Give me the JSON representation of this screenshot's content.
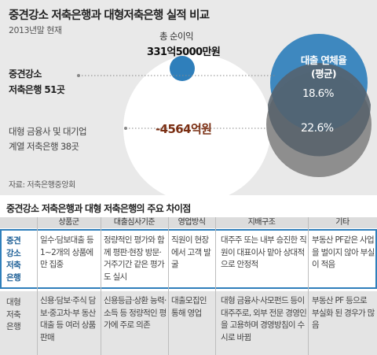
{
  "title": "중견강소 저축은행과 대형저축은행 실적 비교",
  "subtitle": "2013년말 현재",
  "labels": {
    "mid_group_line1": "중견강소",
    "mid_group_line2": "저축은행 51곳",
    "big_group_line1": "대형 금융사 및 대기업",
    "big_group_line2": "계열 저축은행 38곳",
    "profit_name": "총 순이익",
    "profit_value": "331억5000만원",
    "loss_value": "-4564억원",
    "delinquency_line1": "대출 연체율",
    "delinquency_line2": "(평균)",
    "rate_mid": "18.6%",
    "rate_big": "22.6%"
  },
  "colors": {
    "blue": "#2f7fbb",
    "gray": "#8e8e8e",
    "white_bubble": "#ffffff",
    "loss_text": "#7a2e12"
  },
  "source": "자료: 저축은행중앙회",
  "table": {
    "title": "중견강소 저축은행과 대형 저축은행의 주요 차이점",
    "headers": [
      "상품군",
      "대출심사기준",
      "영업방식",
      "지배구조",
      "기타"
    ],
    "rows": [
      {
        "name": "중견강소저축은행",
        "name_lines": [
          "중견",
          "강소",
          "저축",
          "은행"
        ],
        "cells": [
          "일수·담보대출 등 1~2개의 상품에만 집중",
          "정량적인 평가와 함께 평판·현장 방문·거주기간 같은 평가도 실시",
          "직원이 현장에서 고객 발굴",
          "대주주 또는 내부 승진한 직원이 대표이사 맡아 상대적으로 안정적",
          "부동산 PF같은 사업을 벌이지 않아 부실이 적음"
        ]
      },
      {
        "name": "대형저축은행",
        "name_lines": [
          "대형",
          "저축",
          "은행"
        ],
        "cells": [
          "신용·담보·주식 담보·중고차·부 동산 대출 등 여러 상품 판매",
          "신용등급·상환 능력·소득 등 정량적인 평가에 주로 의존",
          "대출모집인 통해 영업",
          "대형 금융사·사모펀드 등이 대주주로, 외부 전문 경영인을 고용하며 경영방침이 수시로 바뀜",
          "부동산 PF 등으로 부실화 된 경우가 많음"
        ]
      }
    ]
  }
}
